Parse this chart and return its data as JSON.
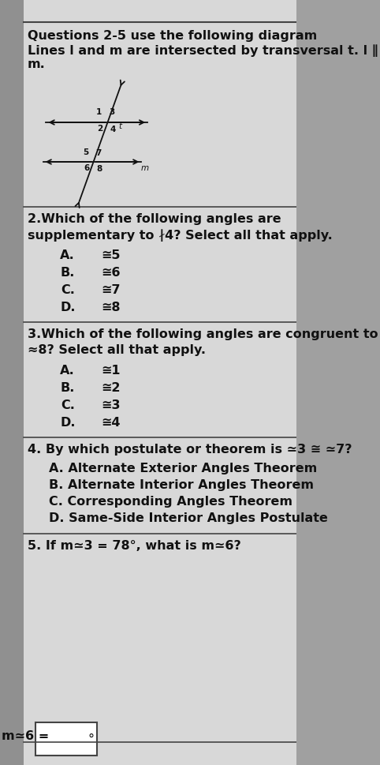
{
  "outer_bg": "#a0a0a0",
  "sidebar_color": "#b0b0b0",
  "paper_color": "#dcdcdc",
  "content_bg": "#e0e0e0",
  "border_color": "#444444",
  "text_color": "#111111",
  "title_line1": "Questions 2-5 use the following diagram",
  "title_line2": "Lines l and m are intersected by transversal t. l ∥",
  "title_line3": "m.",
  "q2_text_line1": "2.Which of the following angles are",
  "q2_text_line2": "supplementary to ∤4? Select all that apply.",
  "q2_options": [
    [
      "A.",
      "≅5"
    ],
    [
      "B.",
      "≅6"
    ],
    [
      "C.",
      "≅7"
    ],
    [
      "D.",
      "≅8"
    ]
  ],
  "q3_text_line1": "3.Which of the following angles are congruent to",
  "q3_text_line2": "≈8? Select all that apply.",
  "q3_options": [
    [
      "A.",
      "≅1"
    ],
    [
      "B.",
      "≅2"
    ],
    [
      "C.",
      "≅3"
    ],
    [
      "D.",
      "≅4"
    ]
  ],
  "q4_text": "4. By which postulate or theorem is ≃3 ≅ ≃7?",
  "q4_options": [
    "A. Alternate Exterior Angles Theorem",
    "B. Alternate Interior Angles Theorem",
    "C. Corresponding Angles Theorem",
    "D. Same-Side Interior Angles Postulate"
  ],
  "q5_text": "5. If m≃3 = 78°, what is m≃6?",
  "answer_label": "m≃6 =",
  "fig_width": 4.82,
  "fig_height": 9.69
}
